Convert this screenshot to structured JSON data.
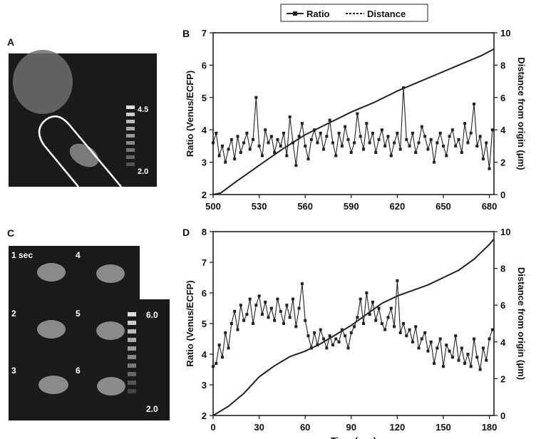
{
  "legend": {
    "ratio": "Ratio",
    "distance": "Distance"
  },
  "panel_a": {
    "letter": "A",
    "scale_max": "4.5",
    "scale_min": "2.0"
  },
  "panel_c": {
    "letter": "C",
    "frame_labels": [
      "1 sec",
      "4",
      "2",
      "5",
      "3",
      "6"
    ],
    "scale_max": "6.0",
    "scale_min": "2.0"
  },
  "colors": {
    "line": "#222222",
    "image_bg": "#1a1a1a",
    "cell": "#8a8a8a",
    "outline": "#ffffff"
  },
  "chart_data": [
    {
      "type": "line",
      "panel": "B",
      "xlabel": "",
      "ylabel": "Ratio (Venus/ECFP)",
      "y2label": "Distance from origin (μm)",
      "xlim": [
        500,
        683
      ],
      "xticks": [
        500,
        530,
        560,
        590,
        620,
        650,
        680
      ],
      "ylim": [
        2,
        7
      ],
      "yticks": [
        2,
        3,
        4,
        5,
        6,
        7
      ],
      "y2lim": [
        0,
        10
      ],
      "y2ticks": [
        0,
        2,
        4,
        6,
        8,
        10
      ],
      "legend_position": "top-center",
      "series": [
        {
          "name": "Ratio",
          "axis": "left",
          "marker": "square",
          "x": [
            500,
            502,
            504,
            506,
            508,
            510,
            512,
            514,
            516,
            518,
            520,
            522,
            524,
            526,
            528,
            530,
            532,
            534,
            536,
            538,
            540,
            542,
            544,
            546,
            548,
            550,
            552,
            554,
            556,
            558,
            560,
            562,
            564,
            566,
            568,
            570,
            572,
            574,
            576,
            578,
            580,
            582,
            584,
            586,
            588,
            590,
            592,
            594,
            596,
            598,
            600,
            602,
            604,
            606,
            608,
            610,
            612,
            614,
            616,
            618,
            620,
            622,
            624,
            626,
            628,
            630,
            632,
            634,
            636,
            638,
            640,
            642,
            644,
            646,
            648,
            650,
            652,
            654,
            656,
            658,
            660,
            662,
            664,
            666,
            668,
            670,
            672,
            674,
            676,
            678,
            680,
            682
          ],
          "y": [
            3.6,
            3.9,
            3.2,
            3.5,
            3.0,
            3.4,
            3.7,
            3.1,
            3.8,
            3.3,
            3.6,
            3.9,
            3.4,
            3.7,
            5.0,
            3.5,
            3.2,
            4.0,
            3.6,
            3.8,
            3.3,
            3.7,
            3.5,
            3.9,
            3.2,
            4.4,
            3.6,
            2.9,
            3.8,
            4.2,
            3.5,
            3.1,
            3.7,
            4.0,
            3.6,
            3.9,
            3.4,
            3.8,
            4.3,
            3.6,
            3.2,
            3.9,
            3.5,
            4.1,
            3.7,
            3.3,
            3.6,
            4.5,
            3.8,
            3.4,
            4.2,
            3.6,
            3.9,
            3.3,
            3.7,
            4.0,
            3.5,
            3.8,
            3.2,
            3.6,
            3.9,
            3.4,
            5.3,
            3.7,
            3.5,
            3.9,
            3.3,
            3.6,
            4.1,
            3.8,
            3.4,
            3.7,
            3.0,
            3.6,
            3.9,
            3.5,
            3.2,
            3.8,
            4.0,
            3.5,
            3.7,
            3.3,
            4.2,
            3.6,
            3.9,
            4.8,
            3.5,
            3.8,
            3.1,
            3.6,
            2.8,
            4.0
          ]
        },
        {
          "name": "Distance",
          "axis": "right",
          "marker": "none",
          "x": [
            500,
            505,
            515,
            530,
            545,
            560,
            575,
            590,
            605,
            620,
            635,
            650,
            665,
            675,
            683
          ],
          "y": [
            0.0,
            0.1,
            0.8,
            1.8,
            2.8,
            3.7,
            4.4,
            5.1,
            5.7,
            6.4,
            7.0,
            7.6,
            8.2,
            8.6,
            9.0
          ]
        }
      ]
    },
    {
      "type": "line",
      "panel": "D",
      "xlabel": "Time (sec)",
      "ylabel": "Ratio (Venus/ECFP)",
      "y2label": "Distance from origin (μm)",
      "xlim": [
        0,
        183
      ],
      "xticks": [
        0,
        30,
        60,
        90,
        120,
        150,
        180
      ],
      "ylim": [
        2,
        8
      ],
      "yticks": [
        2,
        3,
        4,
        5,
        6,
        7,
        8
      ],
      "y2lim": [
        0,
        10
      ],
      "y2ticks": [
        0,
        2,
        4,
        6,
        8,
        10
      ],
      "series": [
        {
          "name": "Ratio",
          "axis": "left",
          "marker": "square",
          "x": [
            0,
            2,
            4,
            6,
            8,
            10,
            12,
            14,
            16,
            18,
            20,
            22,
            24,
            26,
            28,
            30,
            32,
            34,
            36,
            38,
            40,
            42,
            44,
            46,
            48,
            50,
            52,
            54,
            56,
            58,
            60,
            62,
            64,
            66,
            68,
            70,
            72,
            74,
            76,
            78,
            80,
            82,
            84,
            86,
            88,
            90,
            92,
            94,
            96,
            98,
            100,
            102,
            104,
            106,
            108,
            110,
            112,
            114,
            116,
            118,
            120,
            122,
            124,
            126,
            128,
            130,
            132,
            134,
            136,
            138,
            140,
            142,
            144,
            146,
            148,
            150,
            152,
            154,
            156,
            158,
            160,
            162,
            164,
            166,
            168,
            170,
            172,
            174,
            176,
            178,
            180,
            182
          ],
          "y": [
            3.6,
            3.7,
            4.3,
            3.9,
            4.7,
            4.2,
            5.0,
            5.4,
            4.8,
            5.6,
            5.1,
            5.3,
            5.8,
            5.0,
            5.6,
            5.9,
            5.3,
            5.7,
            5.2,
            5.5,
            5.1,
            5.8,
            5.4,
            5.0,
            5.6,
            5.2,
            5.8,
            4.9,
            5.5,
            6.3,
            5.1,
            4.6,
            4.2,
            4.7,
            4.3,
            4.8,
            4.5,
            4.2,
            4.6,
            4.3,
            4.5,
            4.4,
            4.8,
            4.6,
            4.2,
            4.7,
            4.9,
            5.2,
            5.8,
            5.0,
            6.0,
            5.3,
            5.7,
            5.1,
            5.5,
            5.0,
            4.8,
            5.2,
            5.5,
            4.9,
            6.4,
            4.7,
            5.0,
            4.6,
            4.8,
            4.4,
            4.9,
            4.2,
            4.5,
            4.7,
            4.1,
            4.4,
            3.7,
            4.2,
            4.5,
            3.6,
            4.3,
            4.1,
            3.9,
            4.6,
            3.8,
            4.2,
            3.7,
            4.0,
            3.6,
            4.5,
            3.9,
            3.5,
            4.2,
            3.8,
            4.5,
            4.8
          ]
        },
        {
          "name": "Distance",
          "axis": "right",
          "marker": "none",
          "x": [
            0,
            10,
            20,
            30,
            40,
            50,
            60,
            70,
            80,
            90,
            100,
            110,
            120,
            130,
            140,
            150,
            160,
            170,
            180,
            183
          ],
          "y": [
            0.0,
            0.5,
            1.2,
            2.1,
            2.7,
            3.2,
            3.5,
            3.9,
            4.4,
            4.9,
            5.5,
            6.1,
            6.5,
            6.8,
            7.1,
            7.5,
            7.9,
            8.5,
            9.3,
            9.6
          ]
        }
      ]
    }
  ]
}
